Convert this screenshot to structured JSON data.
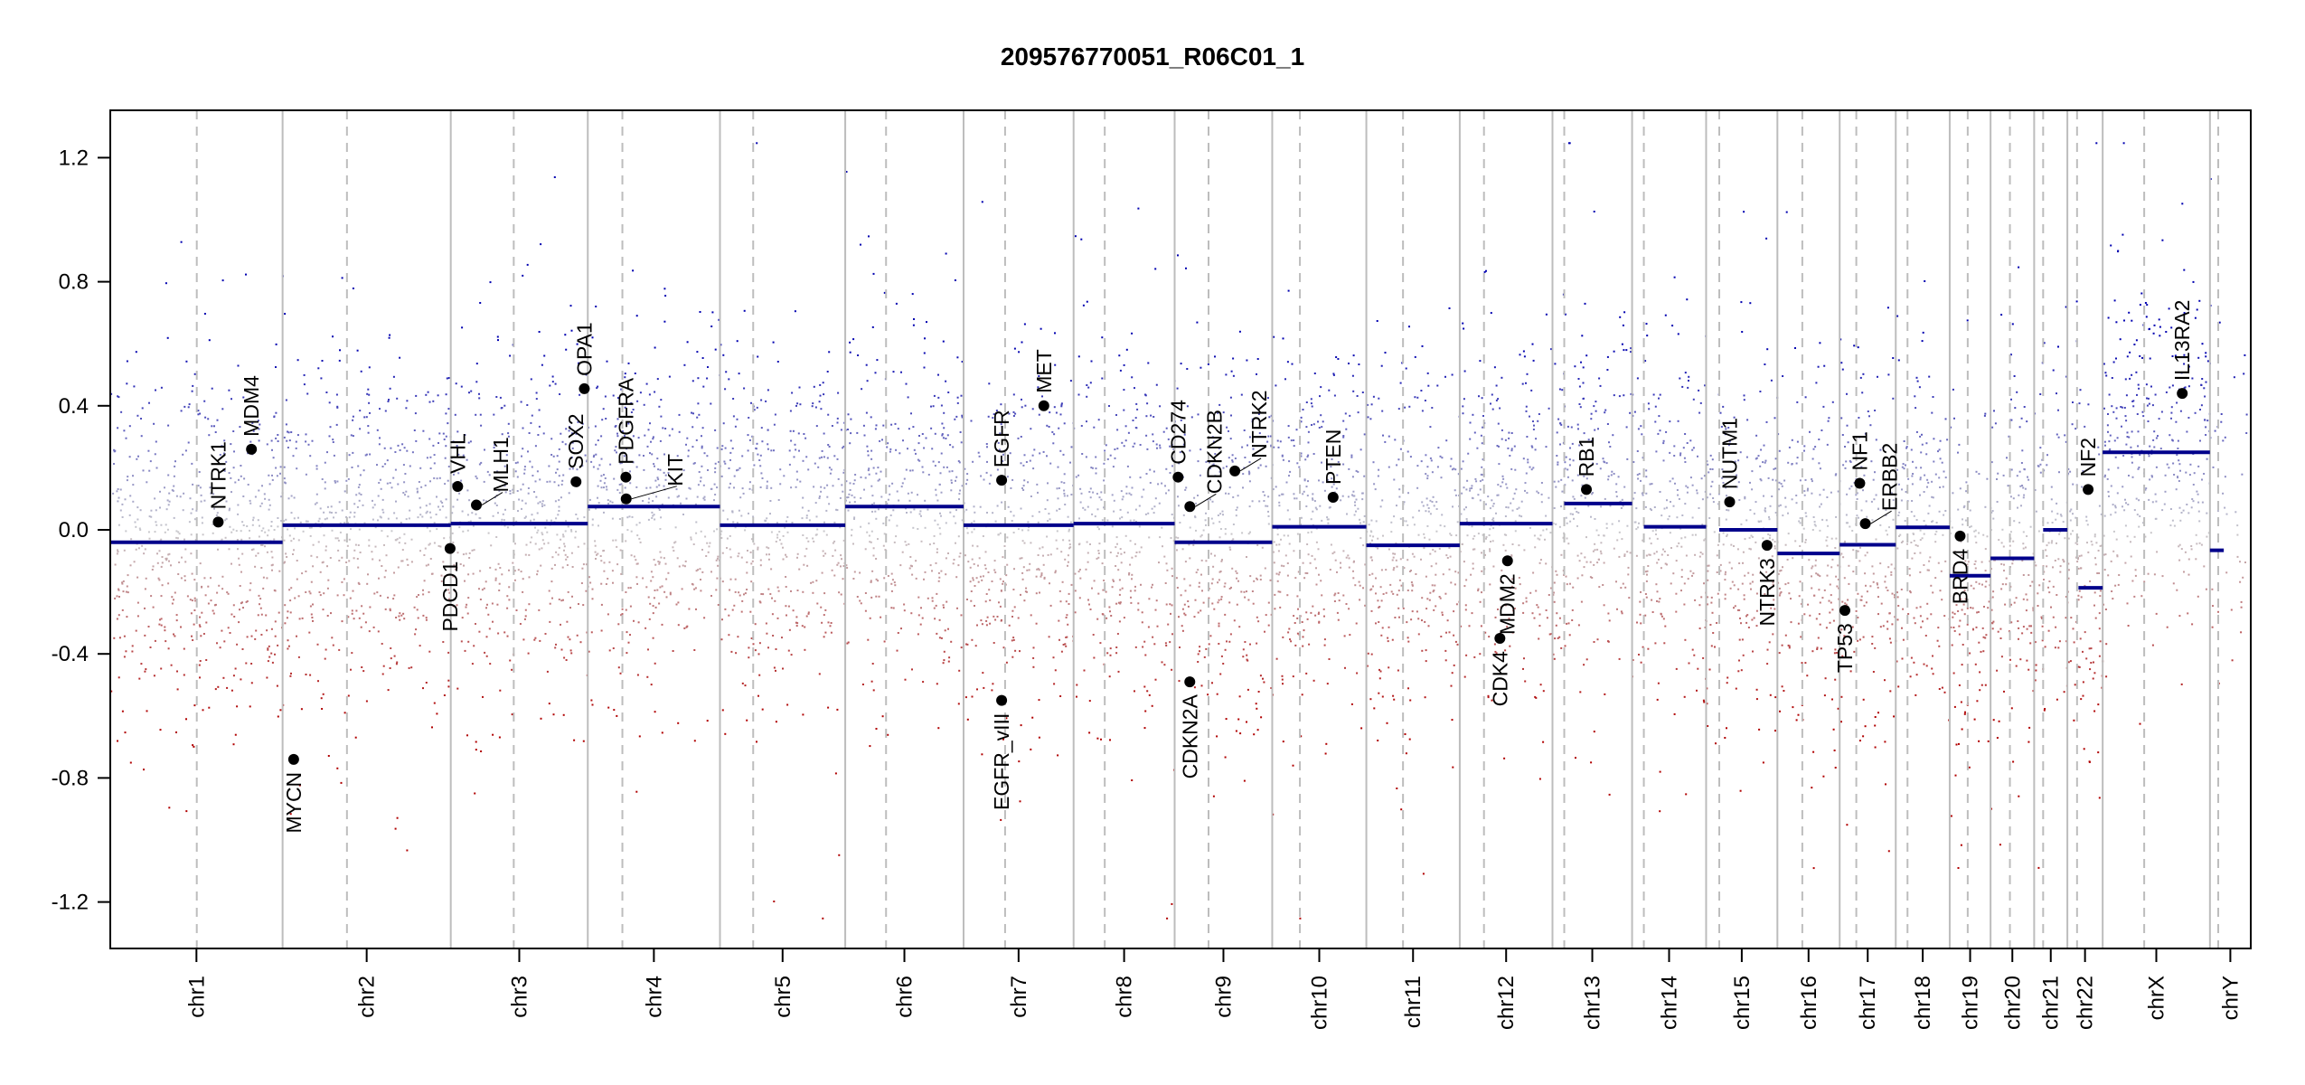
{
  "chart_data": {
    "type": "scatter",
    "title": "209576770051_R06C01_1",
    "xlabel": "",
    "ylabel": "",
    "ylim": [
      -1.35,
      1.35
    ],
    "y_ticks": [
      1.2,
      0.8,
      0.4,
      0.0,
      -0.4,
      -0.8,
      -1.2
    ],
    "y_tick_labels": [
      "1.2",
      "0.8",
      "0.4",
      "0.0",
      "-0.4",
      "-0.8",
      "-1.2"
    ],
    "colors": {
      "gain": "#0000b0",
      "loss": "#b00000",
      "neutral": "#c8c8cc",
      "segment": "#00008b",
      "gene": "#000000",
      "grid": "#bdbdbd"
    },
    "chromosomes": [
      {
        "name": "chr1",
        "length_mb": 249,
        "centromere_mb": 125
      },
      {
        "name": "chr2",
        "length_mb": 243,
        "centromere_mb": 93
      },
      {
        "name": "chr3",
        "length_mb": 198,
        "centromere_mb": 91
      },
      {
        "name": "chr4",
        "length_mb": 191,
        "centromere_mb": 50
      },
      {
        "name": "chr5",
        "length_mb": 181,
        "centromere_mb": 48
      },
      {
        "name": "chr6",
        "length_mb": 171,
        "centromere_mb": 59
      },
      {
        "name": "chr7",
        "length_mb": 159,
        "centromere_mb": 60
      },
      {
        "name": "chr8",
        "length_mb": 146,
        "centromere_mb": 45
      },
      {
        "name": "chr9",
        "length_mb": 141,
        "centromere_mb": 49
      },
      {
        "name": "chr10",
        "length_mb": 136,
        "centromere_mb": 40
      },
      {
        "name": "chr11",
        "length_mb": 135,
        "centromere_mb": 53
      },
      {
        "name": "chr12",
        "length_mb": 134,
        "centromere_mb": 35
      },
      {
        "name": "chr13",
        "length_mb": 115,
        "centromere_mb": 17
      },
      {
        "name": "chr14",
        "length_mb": 107,
        "centromere_mb": 17
      },
      {
        "name": "chr15",
        "length_mb": 103,
        "centromere_mb": 19
      },
      {
        "name": "chr16",
        "length_mb": 90,
        "centromere_mb": 36
      },
      {
        "name": "chr17",
        "length_mb": 81,
        "centromere_mb": 24
      },
      {
        "name": "chr18",
        "length_mb": 78,
        "centromere_mb": 17
      },
      {
        "name": "chr19",
        "length_mb": 59,
        "centromere_mb": 26
      },
      {
        "name": "chr20",
        "length_mb": 63,
        "centromere_mb": 28
      },
      {
        "name": "chr21",
        "length_mb": 48,
        "centromere_mb": 13
      },
      {
        "name": "chr22",
        "length_mb": 51,
        "centromere_mb": 14
      },
      {
        "name": "chrX",
        "length_mb": 155,
        "centromere_mb": 60
      },
      {
        "name": "chrY",
        "length_mb": 59,
        "centromere_mb": 12
      }
    ],
    "segments": [
      {
        "chr": "chr1",
        "start": 0,
        "end": 249,
        "value": -0.04
      },
      {
        "chr": "chr2",
        "start": 0,
        "end": 243,
        "value": 0.015
      },
      {
        "chr": "chr3",
        "start": 0,
        "end": 198,
        "value": 0.02
      },
      {
        "chr": "chr4",
        "start": 0,
        "end": 191,
        "value": 0.075
      },
      {
        "chr": "chr5",
        "start": 0,
        "end": 181,
        "value": 0.015
      },
      {
        "chr": "chr6",
        "start": 0,
        "end": 171,
        "value": 0.075
      },
      {
        "chr": "chr7",
        "start": 0,
        "end": 159,
        "value": 0.015
      },
      {
        "chr": "chr8",
        "start": 0,
        "end": 146,
        "value": 0.02
      },
      {
        "chr": "chr9",
        "start": 0,
        "end": 141,
        "value": -0.04
      },
      {
        "chr": "chr10",
        "start": 0,
        "end": 136,
        "value": 0.01
      },
      {
        "chr": "chr11",
        "start": 0,
        "end": 135,
        "value": -0.05
      },
      {
        "chr": "chr12",
        "start": 0,
        "end": 134,
        "value": 0.02
      },
      {
        "chr": "chr13",
        "start": 17,
        "end": 115,
        "value": 0.085
      },
      {
        "chr": "chr14",
        "start": 17,
        "end": 107,
        "value": 0.01
      },
      {
        "chr": "chr15",
        "start": 19,
        "end": 103,
        "value": 0.0
      },
      {
        "chr": "chr16",
        "start": 0,
        "end": 90,
        "value": -0.076
      },
      {
        "chr": "chr17",
        "start": 0,
        "end": 81,
        "value": -0.048
      },
      {
        "chr": "chr18",
        "start": 0,
        "end": 78,
        "value": 0.008
      },
      {
        "chr": "chr19",
        "start": 0,
        "end": 59,
        "value": -0.148
      },
      {
        "chr": "chr20",
        "start": 0,
        "end": 63,
        "value": -0.092
      },
      {
        "chr": "chr21",
        "start": 13,
        "end": 48,
        "value": 0.0
      },
      {
        "chr": "chr22",
        "start": 16,
        "end": 51,
        "value": -0.187
      },
      {
        "chr": "chrX",
        "start": 0,
        "end": 155,
        "value": 0.25
      },
      {
        "chr": "chrY",
        "start": 0,
        "end": 20,
        "value": -0.066
      }
    ],
    "genes": [
      {
        "name": "NTRK1",
        "chr": "chr1",
        "pos_mb": 156,
        "value": 0.025
      },
      {
        "name": "MDM4",
        "chr": "chr1",
        "pos_mb": 204,
        "value": 0.26
      },
      {
        "name": "MYCN",
        "chr": "chr2",
        "pos_mb": 16,
        "value": -0.74
      },
      {
        "name": "PDCD1",
        "chr": "chr2",
        "pos_mb": 242,
        "value": -0.06
      },
      {
        "name": "VHL",
        "chr": "chr3",
        "pos_mb": 10,
        "value": 0.14
      },
      {
        "name": "MLH1",
        "chr": "chr3",
        "pos_mb": 37,
        "value": 0.08
      },
      {
        "name": "SOX2",
        "chr": "chr3",
        "pos_mb": 181,
        "value": 0.155
      },
      {
        "name": "OPA1",
        "chr": "chr3",
        "pos_mb": 193,
        "value": 0.455
      },
      {
        "name": "PDGFRA",
        "chr": "chr4",
        "pos_mb": 55,
        "value": 0.17
      },
      {
        "name": "KIT",
        "chr": "chr4",
        "pos_mb": 55.5,
        "value": 0.1
      },
      {
        "name": "EGFR",
        "chr": "chr7",
        "pos_mb": 55,
        "value": 0.16
      },
      {
        "name": "EGFR_vIII",
        "chr": "chr7",
        "pos_mb": 55,
        "value": -0.55
      },
      {
        "name": "MET",
        "chr": "chr7",
        "pos_mb": 116,
        "value": 0.4
      },
      {
        "name": "CD274",
        "chr": "chr9",
        "pos_mb": 5,
        "value": 0.17
      },
      {
        "name": "CDKN2B",
        "chr": "chr9",
        "pos_mb": 22,
        "value": 0.075
      },
      {
        "name": "CDKN2A",
        "chr": "chr9",
        "pos_mb": 21.9,
        "value": -0.49
      },
      {
        "name": "NTRK2",
        "chr": "chr9",
        "pos_mb": 87,
        "value": 0.19
      },
      {
        "name": "PTEN",
        "chr": "chr10",
        "pos_mb": 88,
        "value": 0.105
      },
      {
        "name": "CDK4",
        "chr": "chr12",
        "pos_mb": 58,
        "value": -0.35
      },
      {
        "name": "MDM2",
        "chr": "chr12",
        "pos_mb": 69,
        "value": -0.1
      },
      {
        "name": "RB1",
        "chr": "chr13",
        "pos_mb": 49,
        "value": 0.13
      },
      {
        "name": "NUTM1",
        "chr": "chr15",
        "pos_mb": 34,
        "value": 0.09
      },
      {
        "name": "NTRK3",
        "chr": "chr15",
        "pos_mb": 88,
        "value": -0.05
      },
      {
        "name": "TP53",
        "chr": "chr17",
        "pos_mb": 7.5,
        "value": -0.26
      },
      {
        "name": "NF1",
        "chr": "chr17",
        "pos_mb": 29,
        "value": 0.15
      },
      {
        "name": "ERBB2",
        "chr": "chr17",
        "pos_mb": 37,
        "value": 0.02
      },
      {
        "name": "BRD4",
        "chr": "chr19",
        "pos_mb": 15,
        "value": -0.02
      },
      {
        "name": "NF2",
        "chr": "chr22",
        "pos_mb": 30,
        "value": 0.13
      },
      {
        "name": "IL13RA2",
        "chr": "chrX",
        "pos_mb": 115,
        "value": 0.44
      }
    ],
    "probe_noise_sd": 0.28,
    "probes_per_mb": 2.2
  }
}
